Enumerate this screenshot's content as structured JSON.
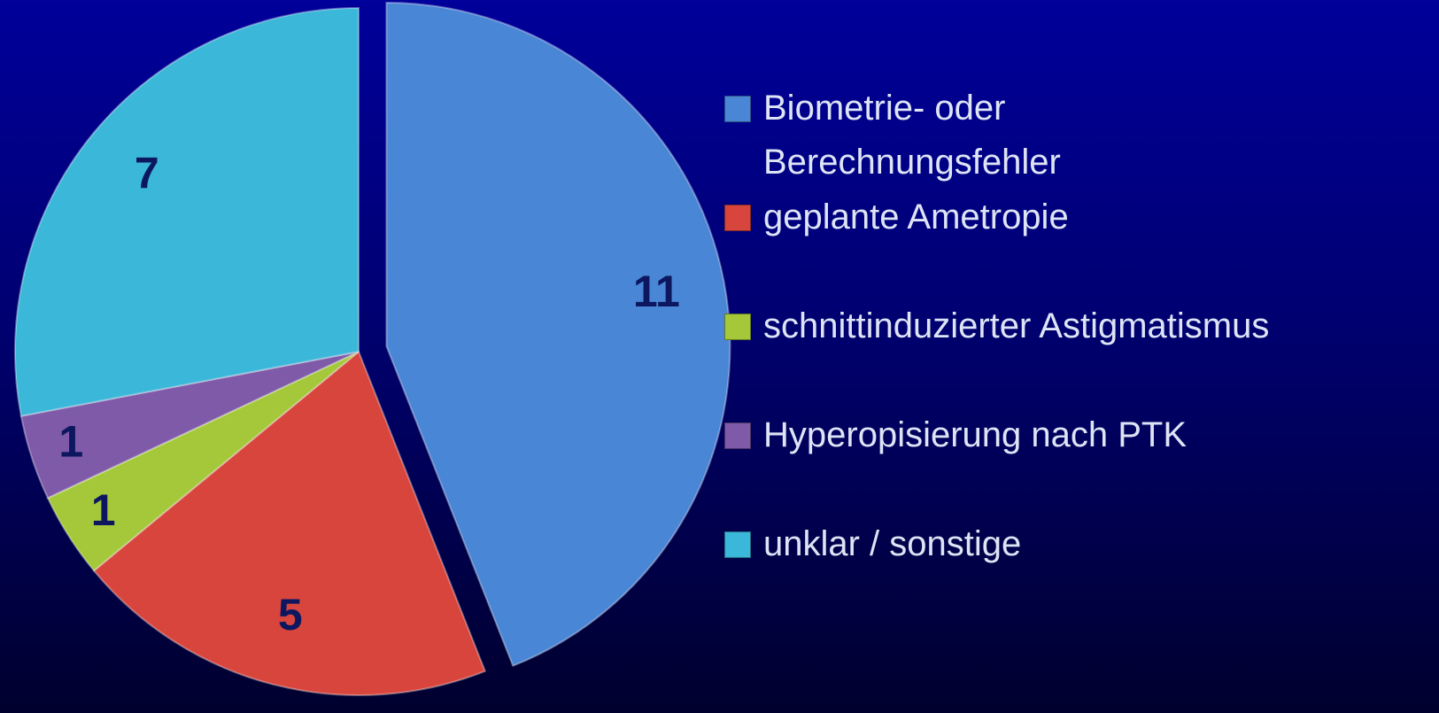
{
  "chart_data": {
    "type": "pie",
    "categories": [
      "Biometrie- oder Berechnungsfehler",
      "geplante Ametropie",
      "schnittinduzierter Astigmatismus",
      "Hyperopisierung nach PTK",
      "unklar / sonstige"
    ],
    "values": [
      11,
      5,
      1,
      1,
      7
    ],
    "colors": [
      "#4a86d6",
      "#d8453d",
      "#a4c83a",
      "#7e5aa8",
      "#3bb7d9"
    ],
    "exploded": [
      0
    ]
  }
}
